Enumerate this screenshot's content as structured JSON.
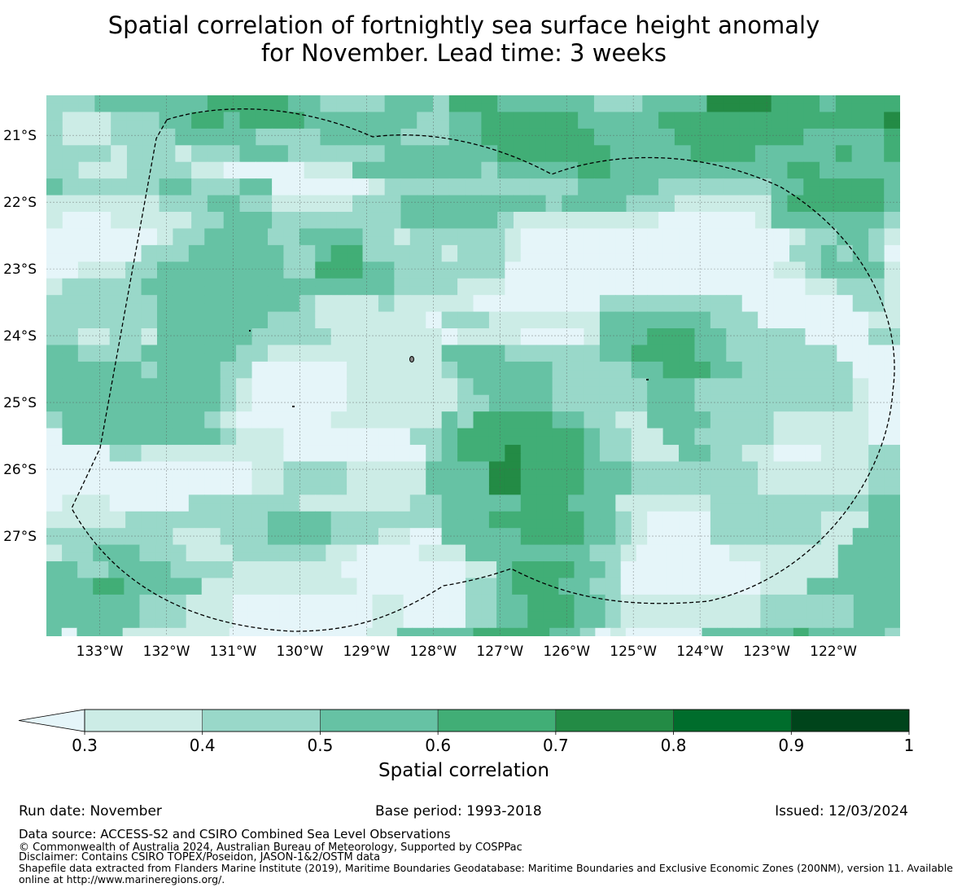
{
  "title": {
    "line1": "Spatial correlation of fortnightly sea surface height anomaly",
    "line2": "for November. Lead time: 3 weeks"
  },
  "map": {
    "lon_range": [
      -133.8,
      -121.0
    ],
    "lat_range": [
      -28.5,
      -20.4
    ],
    "lat_ticks": [
      {
        "value": -21,
        "label": "21°S"
      },
      {
        "value": -22,
        "label": "22°S"
      },
      {
        "value": -23,
        "label": "23°S"
      },
      {
        "value": -24,
        "label": "24°S"
      },
      {
        "value": -25,
        "label": "25°S"
      },
      {
        "value": -26,
        "label": "26°S"
      },
      {
        "value": -27,
        "label": "27°S"
      }
    ],
    "lon_ticks": [
      {
        "value": -133,
        "label": "133°W"
      },
      {
        "value": -132,
        "label": "132°W"
      },
      {
        "value": -131,
        "label": "131°W"
      },
      {
        "value": -130,
        "label": "130°W"
      },
      {
        "value": -129,
        "label": "129°W"
      },
      {
        "value": -128,
        "label": "128°W"
      },
      {
        "value": -127,
        "label": "127°W"
      },
      {
        "value": -126,
        "label": "126°W"
      },
      {
        "value": -125,
        "label": "125°W"
      },
      {
        "value": -124,
        "label": "124°W"
      },
      {
        "value": -123,
        "label": "123°W"
      },
      {
        "value": -122,
        "label": "122°W"
      }
    ],
    "grid_rows": [
      "BBBCCCCCCCDDDDDCCBBBBCCCBDDDCCCCCCBBBCCCCEEEEDDDCDDDD",
      "BBBCCCCCCCDDDDDCCBBBBCCCBDDDCCCCCCBBBCCCCEEEEDDDCDDDD",
      "BAAABBBCCDDCDDDDCCCCCCCBBCCDDDDDDCCCCCDDDDDDDDDDDDDDE",
      "BAAABBBCCDDCDDDDCCCCCCCBBCCDDDDDDCCCCCDDDDDDDDDDDDDDE",
      "BAAABBBBCCCCCBBBBCCCCCBBBCCDDDDDDDCCCCCDDDDDDDDCCCCCD",
      "BAAABBBBCCCCCBBBBCCCCCBBBCCDDDDDDDCCCCCDDDDDDDDCCCCCD",
      "BBBBABBBABBBCCCBBBBBBCCCCCCCDDDDDDDCCCCCDDDDCCCCCDCCD",
      "BBBBABBBABBBCCCBBBBBBCCCCCCCDDDDDDDCCCCCDDDDCCCCCDCCD",
      "BBAAABBBBAA00000AAACCCCCCCCBCCCCCDDCCCCCCCCCCCDDCCCCC",
      "BBAAABBBBAA00000AAACCCCCCCCBCCCCCDDCCCCCCCCCCCDDCCCCC",
      "CBBBBBBCCBBBCC000000ABBBBBBBBBBBBCCCCCBBBBBBBCCDDDDDC",
      "CBBBBBBCCBBBCC000000ABBBBBBBBBBBBCCCCCBBBBBBBCCDDDDDC",
      "AAAAAAABBBCCBBAAAAABBBCCCCCCCCCBCCCCBBBAAAAAACDDDDDDC",
      "AAAAAAABBBCCBBAAAAABBBCCCCCCCCCBCCCCBBBAAAAAACDDDDDDC",
      "A000AAAAABBCCCBBBBBBBBCCCCCCBAAAAAAAAA000000ACCCCCCCB",
      "A000AAAAABBCCCBBBBBBBBCCCCCCBAAAAAAAAA000000ACCCCCCCB",
      "0000000ABBCCCCBBCCCCBBABBBBBBA00000000000000000ABBCCBA",
      "0000000ABBCCCCBBCCCCBBABBBBBBA00000000000000000ABBCCBA",
      "000000BBBCCCCCCBBCDDBBBBBABBBA00000000000000000BBCBCB0",
      "000000BBBCCCCCCBBCDDBBBBBABBBA00000000000000000BBCBCB0",
      "00AAABBCCCCCCCCBBDDDCCBBBBBBB00000000000000000AABCCCCA",
      "00AAABBCCCCCCCCBBDDDCCBBBBBBB00000000000000000AABCCCCA",
      "ABBBBBCCCCCCCCCCCCCCCCBBBBAAA0000000000000000000AABBBA",
      "ABBBBBCCCCCCCCCCCCCCCCBBBBAAA0000000000000000000AABBBA",
      "BBBBBBBCCCCCCCCCBAAAABAAAAA00000000BBBBBBBBB0000000BBA",
      "BBBBBBBCCCCCCCCCBAAAABAAAAA00000000BBBBBBBBB0000000BBA",
      "BBBBBBBCCCCCCCBBBAAAAAAA0BBBAAAAAAACCCCCCCBBB0000000AA",
      "BBBBBBBCCCCCCCBBBAAAAAAA0BBBAAAAAAACCCCCCCBBB0000000AA",
      "BBAABBACCCCCCBBBBBAAAAAAA0AAAA0000ACCCDDDCCBBBBB0000BB",
      "BBAABBACCCCCCBBBBBAAAAAAA0AAAA0000ACCCDDDCCBBBBB0000BB",
      "CCBBBBCCCCCCBBAAAAAAAAAAACCCCBBBBBBCCDDDDCCBBBBBBB0000",
      "CCBBBBCCCCCCBBAAAAAAAAAAACCCCBBBBBBCCDDDDCCBBBBBBB0000",
      "CCCCCCBCCCCBB000000AAAAAABCCCCCCBBBBBCCDDDCCBBBBBBB000",
      "CCCCCCBCCCCBB000000AAAAAABCCCCCCBBBBBCCDDDCCBBBBBBB000",
      "CCCCCCCCCCCBA000000AAAAAAABCCCCCBBBBBBCCCBBBBBBBBBBA00",
      "CCCCCCCCCCCBA000000AAAAAAABCCCCCBBBBBBCCCBBBBBBBBBBA00",
      "CCCCCCCCCCCBA000000AAAAAAABBCCCCBBBBBBCCCBBBBBBBBBBA00",
      "CCCCCCCCCCCBA000000AAAAAAABBCCCCBBBBBBCCCBBBBBBBBBBA00",
      "BCCCCCCCCCBA000000AAAAAAACBDDDDDCCBBAACCCCBBBBAAAAAA00",
      "BCCCCCCCCCBA000000AAAAAAACBDDDDDCCBBAACCCCBBBBAAAAAA00",
      "0CCCCCCCCCCBAAA00000000BBCDDDDDDDDCBBAACCBBBBBAAAAAA00",
      "0CCCCCCCCCCBAAA00000000BBCDDDDDDDDCBBAACCBBBBBAAAAAA00",
      "0000BBAAAAAAAAA000000000BCDDDEDDDDCBBAAACCBBAA000AAABB",
      "0000BBAAAAAAAAA000000000BCDDDEDDDDCBBAAACCBBAA000AAABB",
      "0000000000000AABBBBAAAAACCCCEEDDDDCCCBBBBBBBBAAAAAAABB",
      "0000000000000AABBBBAAAAACCCCEEDDDDCCCBBBBBBBBAAAAAAABB",
      "0000000000000AABBBBAAAAACCCCEEDDDDCCCBBBBBBBBAAAAAAABB",
      "0000000000000AABBBBAAAAACCCCEEDDDDCCCBBBBBBBBAAAAAAABB",
      "0AAA00000BBBBBBBAAAAAAABBCCCCCDDDCCCAAAAAABBBBBBBBBBCC",
      "0AAA00000BBBBBBBAAAAAAABBCCCCCDDDCCCAAAAAABBBBBBBBBBCC",
      "AAAAABBBBBBBBBCCCCBBBBBBBCCCDDDDDDCCBA0000BBBBBBBAAACC",
      "AAAAABBBBBBBBBCCCCBBBBBBBCCCDDDDDDCCBA0000BBBBBBBAAACC",
      "BBBBBBBBAAABBBCCCCBBBAA00CCCCCDDDDCCBA0000BBBBBBBAACCC",
      "BBBBBBBBAAABBBCCCCBBBAA00CCCCCDDDDCCBA0000BBBBBBBAACCC",
      "ABBCCCBBBAAABBBBBBAA0000AAACCCCCCCCBBA000000AAAAAAACCCC",
      "ABBCCCBBBAAABBBBBBAA0000AAACCCCCCCCBBA000000AAAAAAACCCC",
      "CCBBCCCCBBBBAAAAAAA00000000AACDDDDCCB000000000AAAAACCCC",
      "CCBBCCCCBBBBAAAAAAA00000000AACDDDDCCB000000000AAAAACCCC",
      "CCCDDCCCCCAAAAAAAAAA0000000BBCDDDCCBB000000000AAACCCCCC",
      "CCCDDCCCCCAAAAAAAAAA0000000BBCDDDCCBB000000000AAACCCCCC",
      "CCCCCCBBBAAA000000000AA0000BBCCDDDCCBAAAAAAAAABBBBBBCCC",
      "CCCCCCBBBAAA000000000AA0000BBCCDDDCCBAAAAAAAAABBBBBBCCC",
      "CCCCCCBBBAAA000000000AA0000BBCCDDDCCBAAAAAAAAABBBBBBCCC",
      "CCCCCCBBBAAA000000000AA0000BBCCDDDCCBAAAAAAAAABBBBBBCCC",
      "C0CCCAAAAAAA000000000AACCCCCDDDDDCCB0A00000CCCCCCDCCCCCB"
    ]
  },
  "legend": {
    "levels": [
      "<0.3",
      "0.3-0.4",
      "0.4-0.5",
      "0.5-0.6",
      "0.6-0.7",
      "0.7-0.8",
      "0.8-0.9",
      "0.9-1"
    ],
    "colors": [
      "#e5f5f9",
      "#ccece6",
      "#99d8c9",
      "#66c2a4",
      "#41ae76",
      "#238b45",
      "#006d2c",
      "#00441b"
    ],
    "tick_labels": [
      "0.3",
      "0.4",
      "0.5",
      "0.6",
      "0.7",
      "0.8",
      "0.9",
      "1"
    ],
    "label": "Spatial correlation"
  },
  "footer": {
    "run_date": "Run date: November",
    "base_period": "Base period: 1993-2018",
    "issued": "Issued: 12/03/2024",
    "data_source": "Data source: ACCESS-S2 and CSIRO Combined Sea Level Observations",
    "copyright": "© Commonwealth of Australia 2024, Australian Bureau of Meteorology, Supported by COSPPac",
    "disclaimer": "Disclaimer: Contains CSIRO TOPEX/Poseidon, JASON-1&2/OSTM data",
    "shapefile_line1": "Shapefile data extracted from Flanders Marine Institute (2019), Maritime Boundaries Geodatabase: Maritime Boundaries and Exclusive Economic Zones (200NM), version 11. Available",
    "shapefile_line2": "online at http://www.marineregions.org/."
  }
}
